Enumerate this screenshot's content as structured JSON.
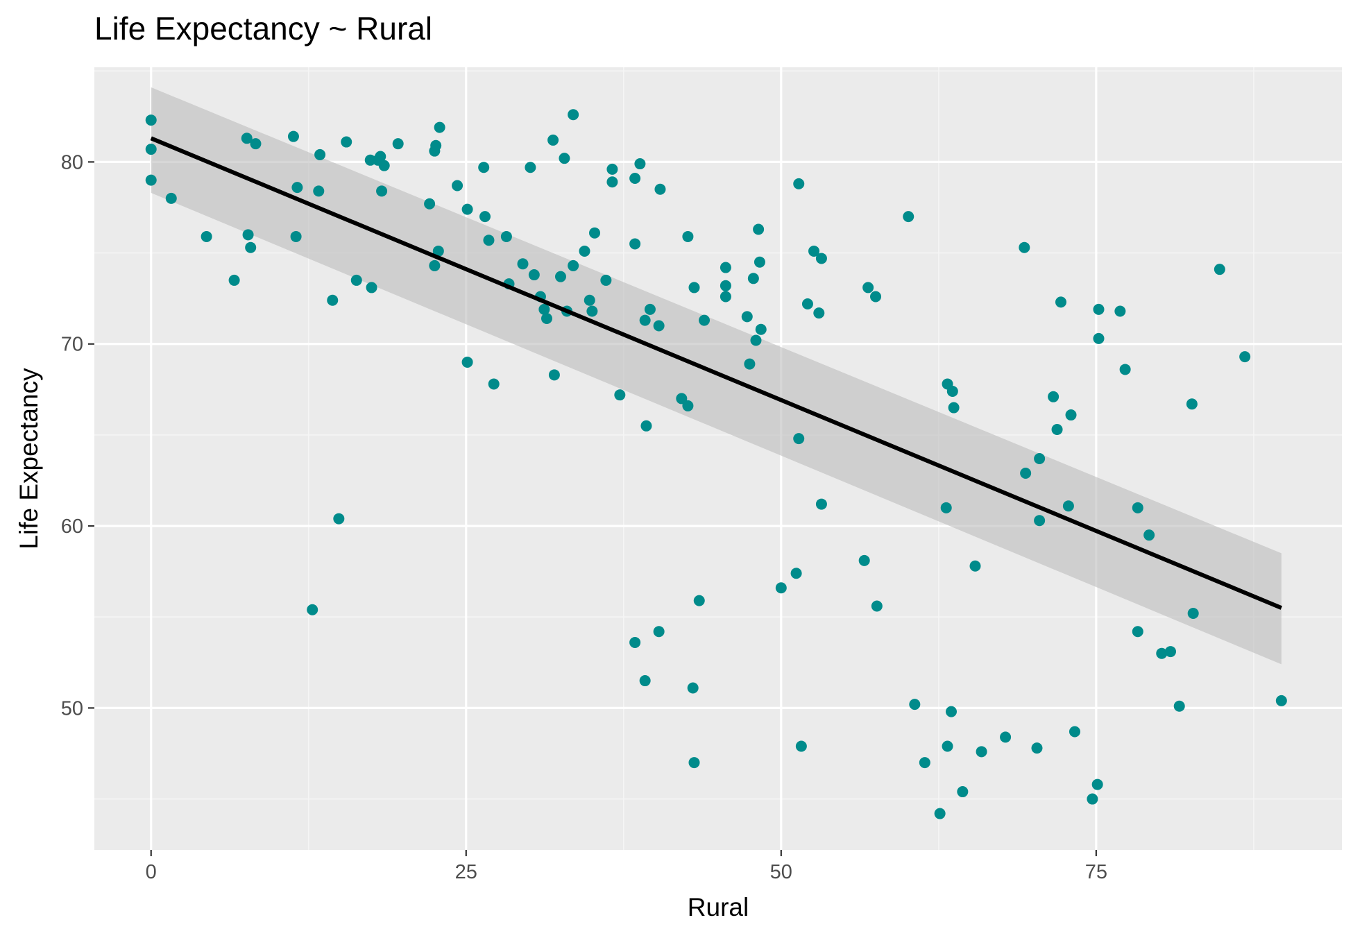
{
  "chart_data": {
    "type": "scatter",
    "title": "Life Expectancy ~ Rural",
    "xlabel": "Rural",
    "ylabel": "Life Expectancy",
    "xlim": [
      -4.5,
      94.5
    ],
    "ylim": [
      42.2,
      85.2
    ],
    "x_ticks": [
      0,
      25,
      50,
      75
    ],
    "x_tick_labels": [
      "0",
      "25",
      "50",
      "75"
    ],
    "y_ticks": [
      50,
      60,
      70,
      80
    ],
    "y_tick_labels": [
      "50",
      "60",
      "70",
      "80"
    ],
    "grid": true,
    "legend": "none",
    "colors": {
      "panel_background": "#ebebeb",
      "grid_major": "#ffffff",
      "grid_minor": "#f5f5f5",
      "point": "#008b8b",
      "fit_line": "#000000",
      "confidence_band": "#bdbdbd"
    },
    "points": [
      {
        "x": 0.0,
        "y": 82.3
      },
      {
        "x": 0.0,
        "y": 80.7
      },
      {
        "x": 0.0,
        "y": 79.0
      },
      {
        "x": 1.6,
        "y": 78.0
      },
      {
        "x": 4.4,
        "y": 75.9
      },
      {
        "x": 6.6,
        "y": 73.5
      },
      {
        "x": 7.6,
        "y": 81.3
      },
      {
        "x": 7.7,
        "y": 76.0
      },
      {
        "x": 7.9,
        "y": 75.3
      },
      {
        "x": 8.3,
        "y": 81.0
      },
      {
        "x": 11.3,
        "y": 81.4
      },
      {
        "x": 11.5,
        "y": 75.9
      },
      {
        "x": 11.6,
        "y": 78.6
      },
      {
        "x": 12.8,
        "y": 55.4
      },
      {
        "x": 13.3,
        "y": 78.4
      },
      {
        "x": 13.4,
        "y": 80.4
      },
      {
        "x": 14.4,
        "y": 72.4
      },
      {
        "x": 14.9,
        "y": 60.4
      },
      {
        "x": 15.5,
        "y": 81.1
      },
      {
        "x": 16.3,
        "y": 73.5
      },
      {
        "x": 17.5,
        "y": 73.1
      },
      {
        "x": 17.4,
        "y": 80.1
      },
      {
        "x": 18.2,
        "y": 80.3
      },
      {
        "x": 18.0,
        "y": 80.1
      },
      {
        "x": 18.3,
        "y": 78.4
      },
      {
        "x": 18.5,
        "y": 79.8
      },
      {
        "x": 19.6,
        "y": 81.0
      },
      {
        "x": 22.1,
        "y": 77.7
      },
      {
        "x": 22.5,
        "y": 80.6
      },
      {
        "x": 22.6,
        "y": 80.9
      },
      {
        "x": 22.9,
        "y": 81.9
      },
      {
        "x": 22.5,
        "y": 74.3
      },
      {
        "x": 22.8,
        "y": 75.1
      },
      {
        "x": 24.3,
        "y": 78.7
      },
      {
        "x": 25.1,
        "y": 77.4
      },
      {
        "x": 25.1,
        "y": 69.0
      },
      {
        "x": 26.4,
        "y": 79.7
      },
      {
        "x": 26.5,
        "y": 77.0
      },
      {
        "x": 26.8,
        "y": 75.7
      },
      {
        "x": 27.2,
        "y": 67.8
      },
      {
        "x": 28.2,
        "y": 75.9
      },
      {
        "x": 28.4,
        "y": 73.3
      },
      {
        "x": 29.5,
        "y": 74.4
      },
      {
        "x": 30.1,
        "y": 79.7
      },
      {
        "x": 30.4,
        "y": 73.8
      },
      {
        "x": 30.9,
        "y": 72.6
      },
      {
        "x": 31.2,
        "y": 71.9
      },
      {
        "x": 31.4,
        "y": 71.4
      },
      {
        "x": 31.9,
        "y": 81.2
      },
      {
        "x": 32.0,
        "y": 68.3
      },
      {
        "x": 32.5,
        "y": 73.7
      },
      {
        "x": 32.8,
        "y": 80.2
      },
      {
        "x": 33.0,
        "y": 71.8
      },
      {
        "x": 33.5,
        "y": 82.6
      },
      {
        "x": 33.5,
        "y": 74.3
      },
      {
        "x": 34.4,
        "y": 75.1
      },
      {
        "x": 34.8,
        "y": 72.4
      },
      {
        "x": 35.0,
        "y": 71.8
      },
      {
        "x": 35.2,
        "y": 76.1
      },
      {
        "x": 36.1,
        "y": 73.5
      },
      {
        "x": 36.6,
        "y": 79.6
      },
      {
        "x": 36.6,
        "y": 78.9
      },
      {
        "x": 37.2,
        "y": 67.2
      },
      {
        "x": 38.4,
        "y": 79.1
      },
      {
        "x": 38.4,
        "y": 75.5
      },
      {
        "x": 38.4,
        "y": 53.6
      },
      {
        "x": 38.8,
        "y": 79.9
      },
      {
        "x": 39.2,
        "y": 71.3
      },
      {
        "x": 39.3,
        "y": 65.5
      },
      {
        "x": 39.2,
        "y": 51.5
      },
      {
        "x": 39.6,
        "y": 71.9
      },
      {
        "x": 40.3,
        "y": 71.0
      },
      {
        "x": 40.4,
        "y": 78.5
      },
      {
        "x": 40.3,
        "y": 54.2
      },
      {
        "x": 42.1,
        "y": 67.0
      },
      {
        "x": 42.6,
        "y": 75.9
      },
      {
        "x": 42.6,
        "y": 66.6
      },
      {
        "x": 43.1,
        "y": 73.1
      },
      {
        "x": 43.0,
        "y": 51.1
      },
      {
        "x": 43.1,
        "y": 47.0
      },
      {
        "x": 43.5,
        "y": 55.9
      },
      {
        "x": 43.9,
        "y": 71.3
      },
      {
        "x": 45.6,
        "y": 74.2
      },
      {
        "x": 45.6,
        "y": 73.2
      },
      {
        "x": 45.6,
        "y": 72.6
      },
      {
        "x": 47.3,
        "y": 71.5
      },
      {
        "x": 47.5,
        "y": 68.9
      },
      {
        "x": 47.8,
        "y": 73.6
      },
      {
        "x": 48.0,
        "y": 70.2
      },
      {
        "x": 48.2,
        "y": 76.3
      },
      {
        "x": 48.3,
        "y": 74.5
      },
      {
        "x": 48.4,
        "y": 70.8
      },
      {
        "x": 50.0,
        "y": 56.6
      },
      {
        "x": 51.2,
        "y": 57.4
      },
      {
        "x": 51.4,
        "y": 78.8
      },
      {
        "x": 51.4,
        "y": 64.8
      },
      {
        "x": 51.6,
        "y": 47.9
      },
      {
        "x": 52.1,
        "y": 72.2
      },
      {
        "x": 52.6,
        "y": 75.1
      },
      {
        "x": 53.0,
        "y": 71.7
      },
      {
        "x": 53.2,
        "y": 74.7
      },
      {
        "x": 53.2,
        "y": 61.2
      },
      {
        "x": 56.6,
        "y": 58.1
      },
      {
        "x": 56.9,
        "y": 73.1
      },
      {
        "x": 57.5,
        "y": 72.6
      },
      {
        "x": 57.6,
        "y": 55.6
      },
      {
        "x": 60.1,
        "y": 77.0
      },
      {
        "x": 60.6,
        "y": 50.2
      },
      {
        "x": 61.4,
        "y": 47.0
      },
      {
        "x": 62.6,
        "y": 44.2
      },
      {
        "x": 63.2,
        "y": 67.8
      },
      {
        "x": 63.1,
        "y": 61.0
      },
      {
        "x": 63.2,
        "y": 47.9
      },
      {
        "x": 63.5,
        "y": 49.8
      },
      {
        "x": 63.6,
        "y": 67.4
      },
      {
        "x": 63.7,
        "y": 66.5
      },
      {
        "x": 64.4,
        "y": 45.4
      },
      {
        "x": 65.4,
        "y": 57.8
      },
      {
        "x": 65.9,
        "y": 47.6
      },
      {
        "x": 67.8,
        "y": 48.4
      },
      {
        "x": 69.3,
        "y": 75.3
      },
      {
        "x": 69.4,
        "y": 62.9
      },
      {
        "x": 70.3,
        "y": 47.8
      },
      {
        "x": 70.5,
        "y": 63.7
      },
      {
        "x": 70.5,
        "y": 60.3
      },
      {
        "x": 71.6,
        "y": 67.1
      },
      {
        "x": 71.9,
        "y": 65.3
      },
      {
        "x": 72.2,
        "y": 72.3
      },
      {
        "x": 72.8,
        "y": 61.1
      },
      {
        "x": 73.0,
        "y": 66.1
      },
      {
        "x": 73.3,
        "y": 48.7
      },
      {
        "x": 74.7,
        "y": 45.0
      },
      {
        "x": 75.2,
        "y": 71.9
      },
      {
        "x": 75.2,
        "y": 70.3
      },
      {
        "x": 75.1,
        "y": 45.8
      },
      {
        "x": 76.9,
        "y": 71.8
      },
      {
        "x": 77.3,
        "y": 68.6
      },
      {
        "x": 78.3,
        "y": 61.0
      },
      {
        "x": 78.3,
        "y": 54.2
      },
      {
        "x": 79.2,
        "y": 59.5
      },
      {
        "x": 80.2,
        "y": 53.0
      },
      {
        "x": 80.9,
        "y": 53.1
      },
      {
        "x": 81.6,
        "y": 50.1
      },
      {
        "x": 82.6,
        "y": 66.7
      },
      {
        "x": 82.7,
        "y": 55.2
      },
      {
        "x": 84.8,
        "y": 74.1
      },
      {
        "x": 86.8,
        "y": 69.3
      },
      {
        "x": 89.7,
        "y": 50.4
      }
    ],
    "fit_line": {
      "x": [
        0.0,
        89.7
      ],
      "y": [
        81.3,
        55.5
      ]
    },
    "confidence_band": {
      "x": [
        0.0,
        89.7
      ],
      "upper": [
        84.1,
        58.5
      ],
      "lower": [
        78.3,
        52.4
      ]
    }
  }
}
